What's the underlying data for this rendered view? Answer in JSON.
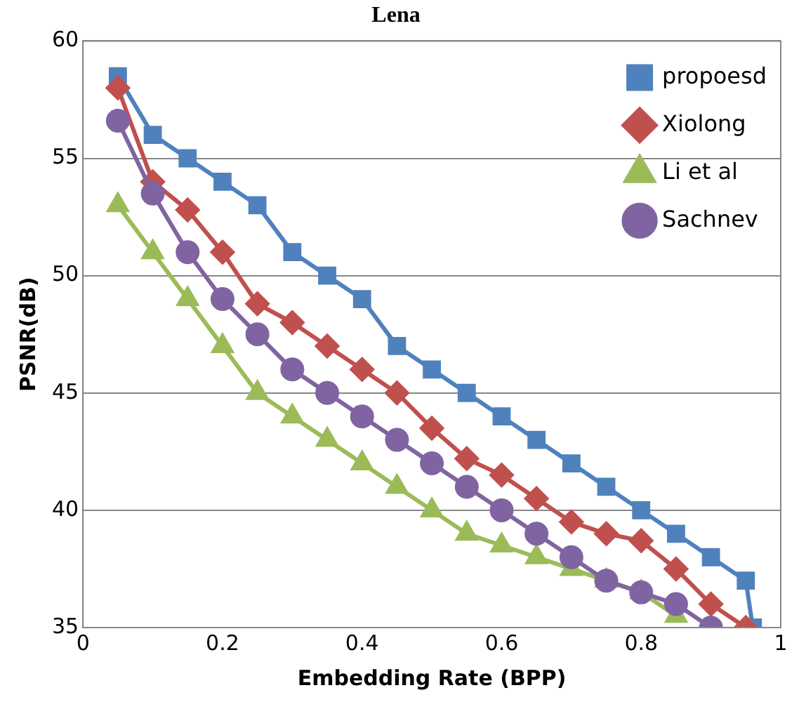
{
  "chart_data": {
    "type": "line",
    "title": "Lena",
    "xlabel": "Embedding Rate (BPP)",
    "ylabel": "PSNR(dB)",
    "xlim": [
      0,
      1
    ],
    "xticks": [
      0,
      0.2,
      0.4,
      0.6,
      0.8,
      1
    ],
    "ylim": [
      35,
      60
    ],
    "yticks": [
      35,
      40,
      45,
      50,
      55,
      60
    ],
    "grid": "y",
    "legend": "top right",
    "series": [
      {
        "name": "propoesd",
        "color": "#4f81bd",
        "marker": "square",
        "x": [
          0.05,
          0.1,
          0.15,
          0.2,
          0.25,
          0.3,
          0.35,
          0.4,
          0.45,
          0.5,
          0.55,
          0.6,
          0.65,
          0.7,
          0.75,
          0.8,
          0.85,
          0.9,
          0.95,
          0.96
        ],
        "values": [
          58.5,
          56,
          55,
          54,
          53,
          51,
          50,
          49,
          47,
          46,
          45,
          44,
          43,
          42,
          41,
          40,
          39,
          38,
          37,
          35
        ]
      },
      {
        "name": "Xiolong",
        "color": "#c0504d",
        "marker": "diamond",
        "x": [
          0.05,
          0.1,
          0.15,
          0.2,
          0.25,
          0.3,
          0.35,
          0.4,
          0.45,
          0.5,
          0.55,
          0.6,
          0.65,
          0.7,
          0.75,
          0.8,
          0.85,
          0.9,
          0.95
        ],
        "values": [
          58,
          54,
          52.8,
          51,
          48.8,
          48,
          47,
          46,
          45,
          43.5,
          42.2,
          41.5,
          40.5,
          39.5,
          39,
          38.7,
          37.5,
          36,
          35
        ]
      },
      {
        "name": "Li et al",
        "color": "#9bbb59",
        "marker": "triangle",
        "x": [
          0.05,
          0.1,
          0.15,
          0.2,
          0.25,
          0.3,
          0.35,
          0.4,
          0.45,
          0.5,
          0.55,
          0.6,
          0.65,
          0.7,
          0.75,
          0.8,
          0.85
        ],
        "values": [
          53,
          51,
          49,
          47,
          45,
          44,
          43,
          42,
          41,
          40,
          39,
          38.5,
          38,
          37.5,
          37,
          36.5,
          35.5
        ]
      },
      {
        "name": "Sachnev",
        "color": "#8064a2",
        "marker": "circle",
        "x": [
          0.05,
          0.1,
          0.15,
          0.2,
          0.25,
          0.3,
          0.35,
          0.4,
          0.45,
          0.5,
          0.55,
          0.6,
          0.65,
          0.7,
          0.75,
          0.8,
          0.85,
          0.9
        ],
        "values": [
          56.6,
          53.5,
          51,
          49,
          47.5,
          46,
          45,
          44,
          43,
          42,
          41,
          40,
          39,
          38,
          37,
          36.5,
          36,
          35
        ]
      }
    ]
  }
}
